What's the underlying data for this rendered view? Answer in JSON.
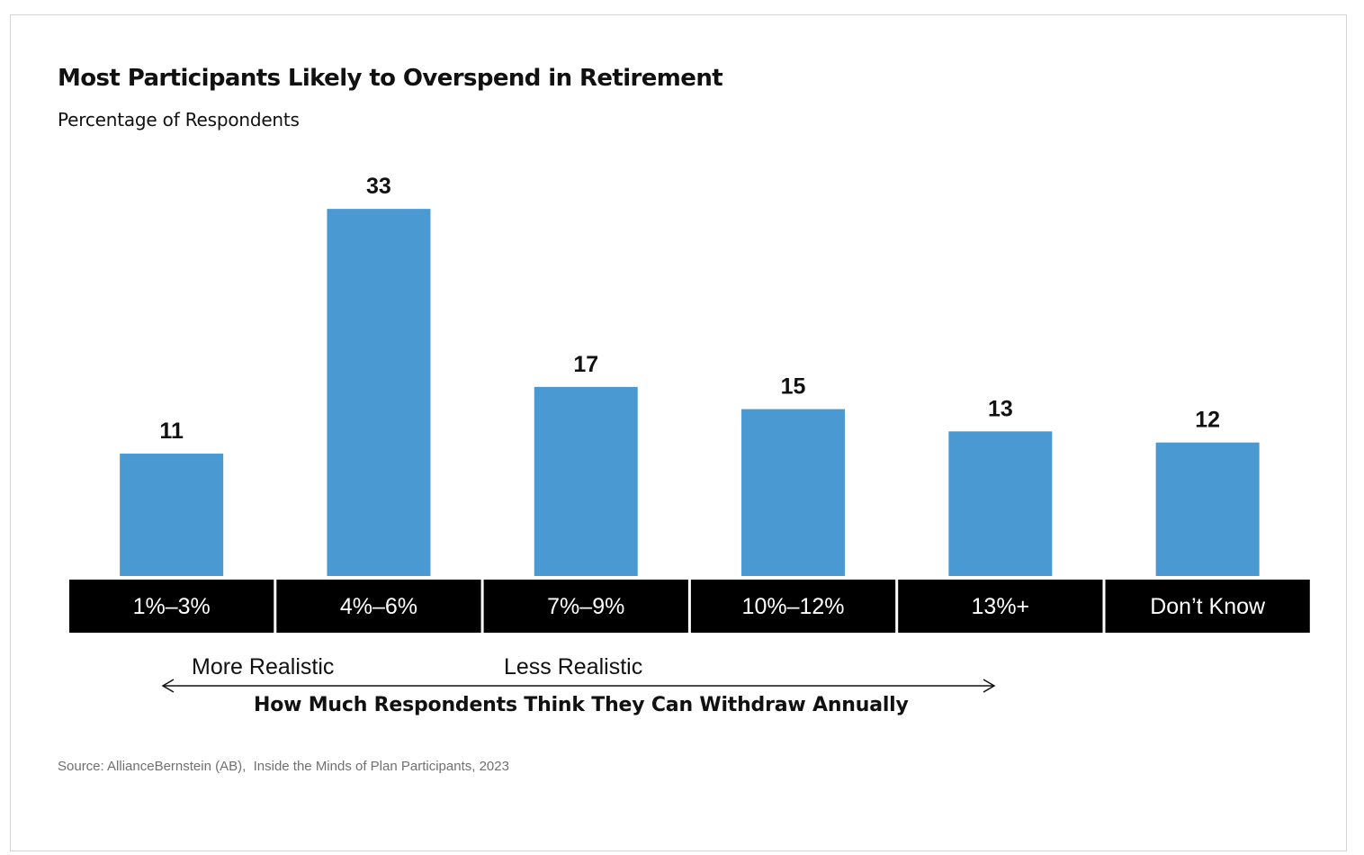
{
  "chart_data": {
    "type": "bar",
    "title": "Most Participants Likely to Overspend in Retirement",
    "subtitle": "Percentage of Respondents",
    "categories": [
      "1%–3%",
      "4%–6%",
      "7%–9%",
      "10%–12%",
      "13%+",
      "Don’t Know"
    ],
    "values": [
      11,
      33,
      17,
      15,
      13,
      12
    ],
    "xlabel": "How Much Respondents Think They Can Withdraw Annually",
    "ylabel": "",
    "annotations": [
      "More Realistic",
      "Less Realistic"
    ],
    "grid": false,
    "legend": "none",
    "bar_color": "#4a99d3",
    "category_label_background": "#000000",
    "category_label_color": "#ffffff"
  },
  "source": "Source: AllianceBernstein (AB),  Inside the Minds of Plan Participants, 2023"
}
